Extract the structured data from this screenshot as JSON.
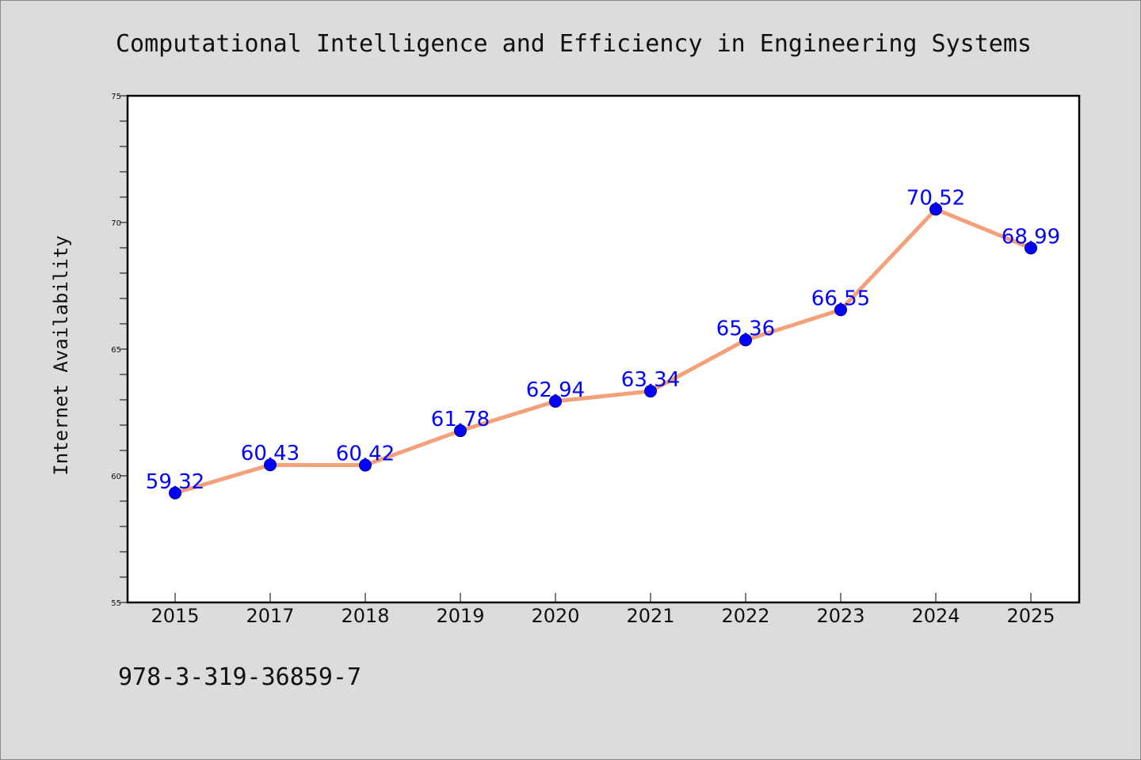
{
  "chart_data": {
    "type": "line",
    "title": "Computational Intelligence and Efficiency in Engineering Systems",
    "xlabel": "",
    "ylabel": "Internet Availability",
    "categories": [
      "2015",
      "2017",
      "2018",
      "2019",
      "2020",
      "2021",
      "2022",
      "2023",
      "2024",
      "2025"
    ],
    "values": [
      59.32,
      60.43,
      60.42,
      61.78,
      62.94,
      63.34,
      65.36,
      66.55,
      70.52,
      68.99
    ],
    "data_labels": [
      "59.32",
      "60.43",
      "60.42",
      "61.78",
      "62.94",
      "63.34",
      "65.36",
      "66.55",
      "70.52",
      "68.99"
    ],
    "ylim": [
      55,
      75
    ],
    "yticks": [
      "55",
      "60",
      "65",
      "70",
      "75"
    ],
    "grid": false,
    "legend": "none",
    "colors": {
      "line": "#f4a07a",
      "marker": "#0000ff",
      "marker_edge": "#000080",
      "label": "#0000ff",
      "plot_background": "#ffffff",
      "figure_background": "#dcdcdc"
    }
  },
  "footer": {
    "isbn": "978-3-319-36859-7"
  }
}
